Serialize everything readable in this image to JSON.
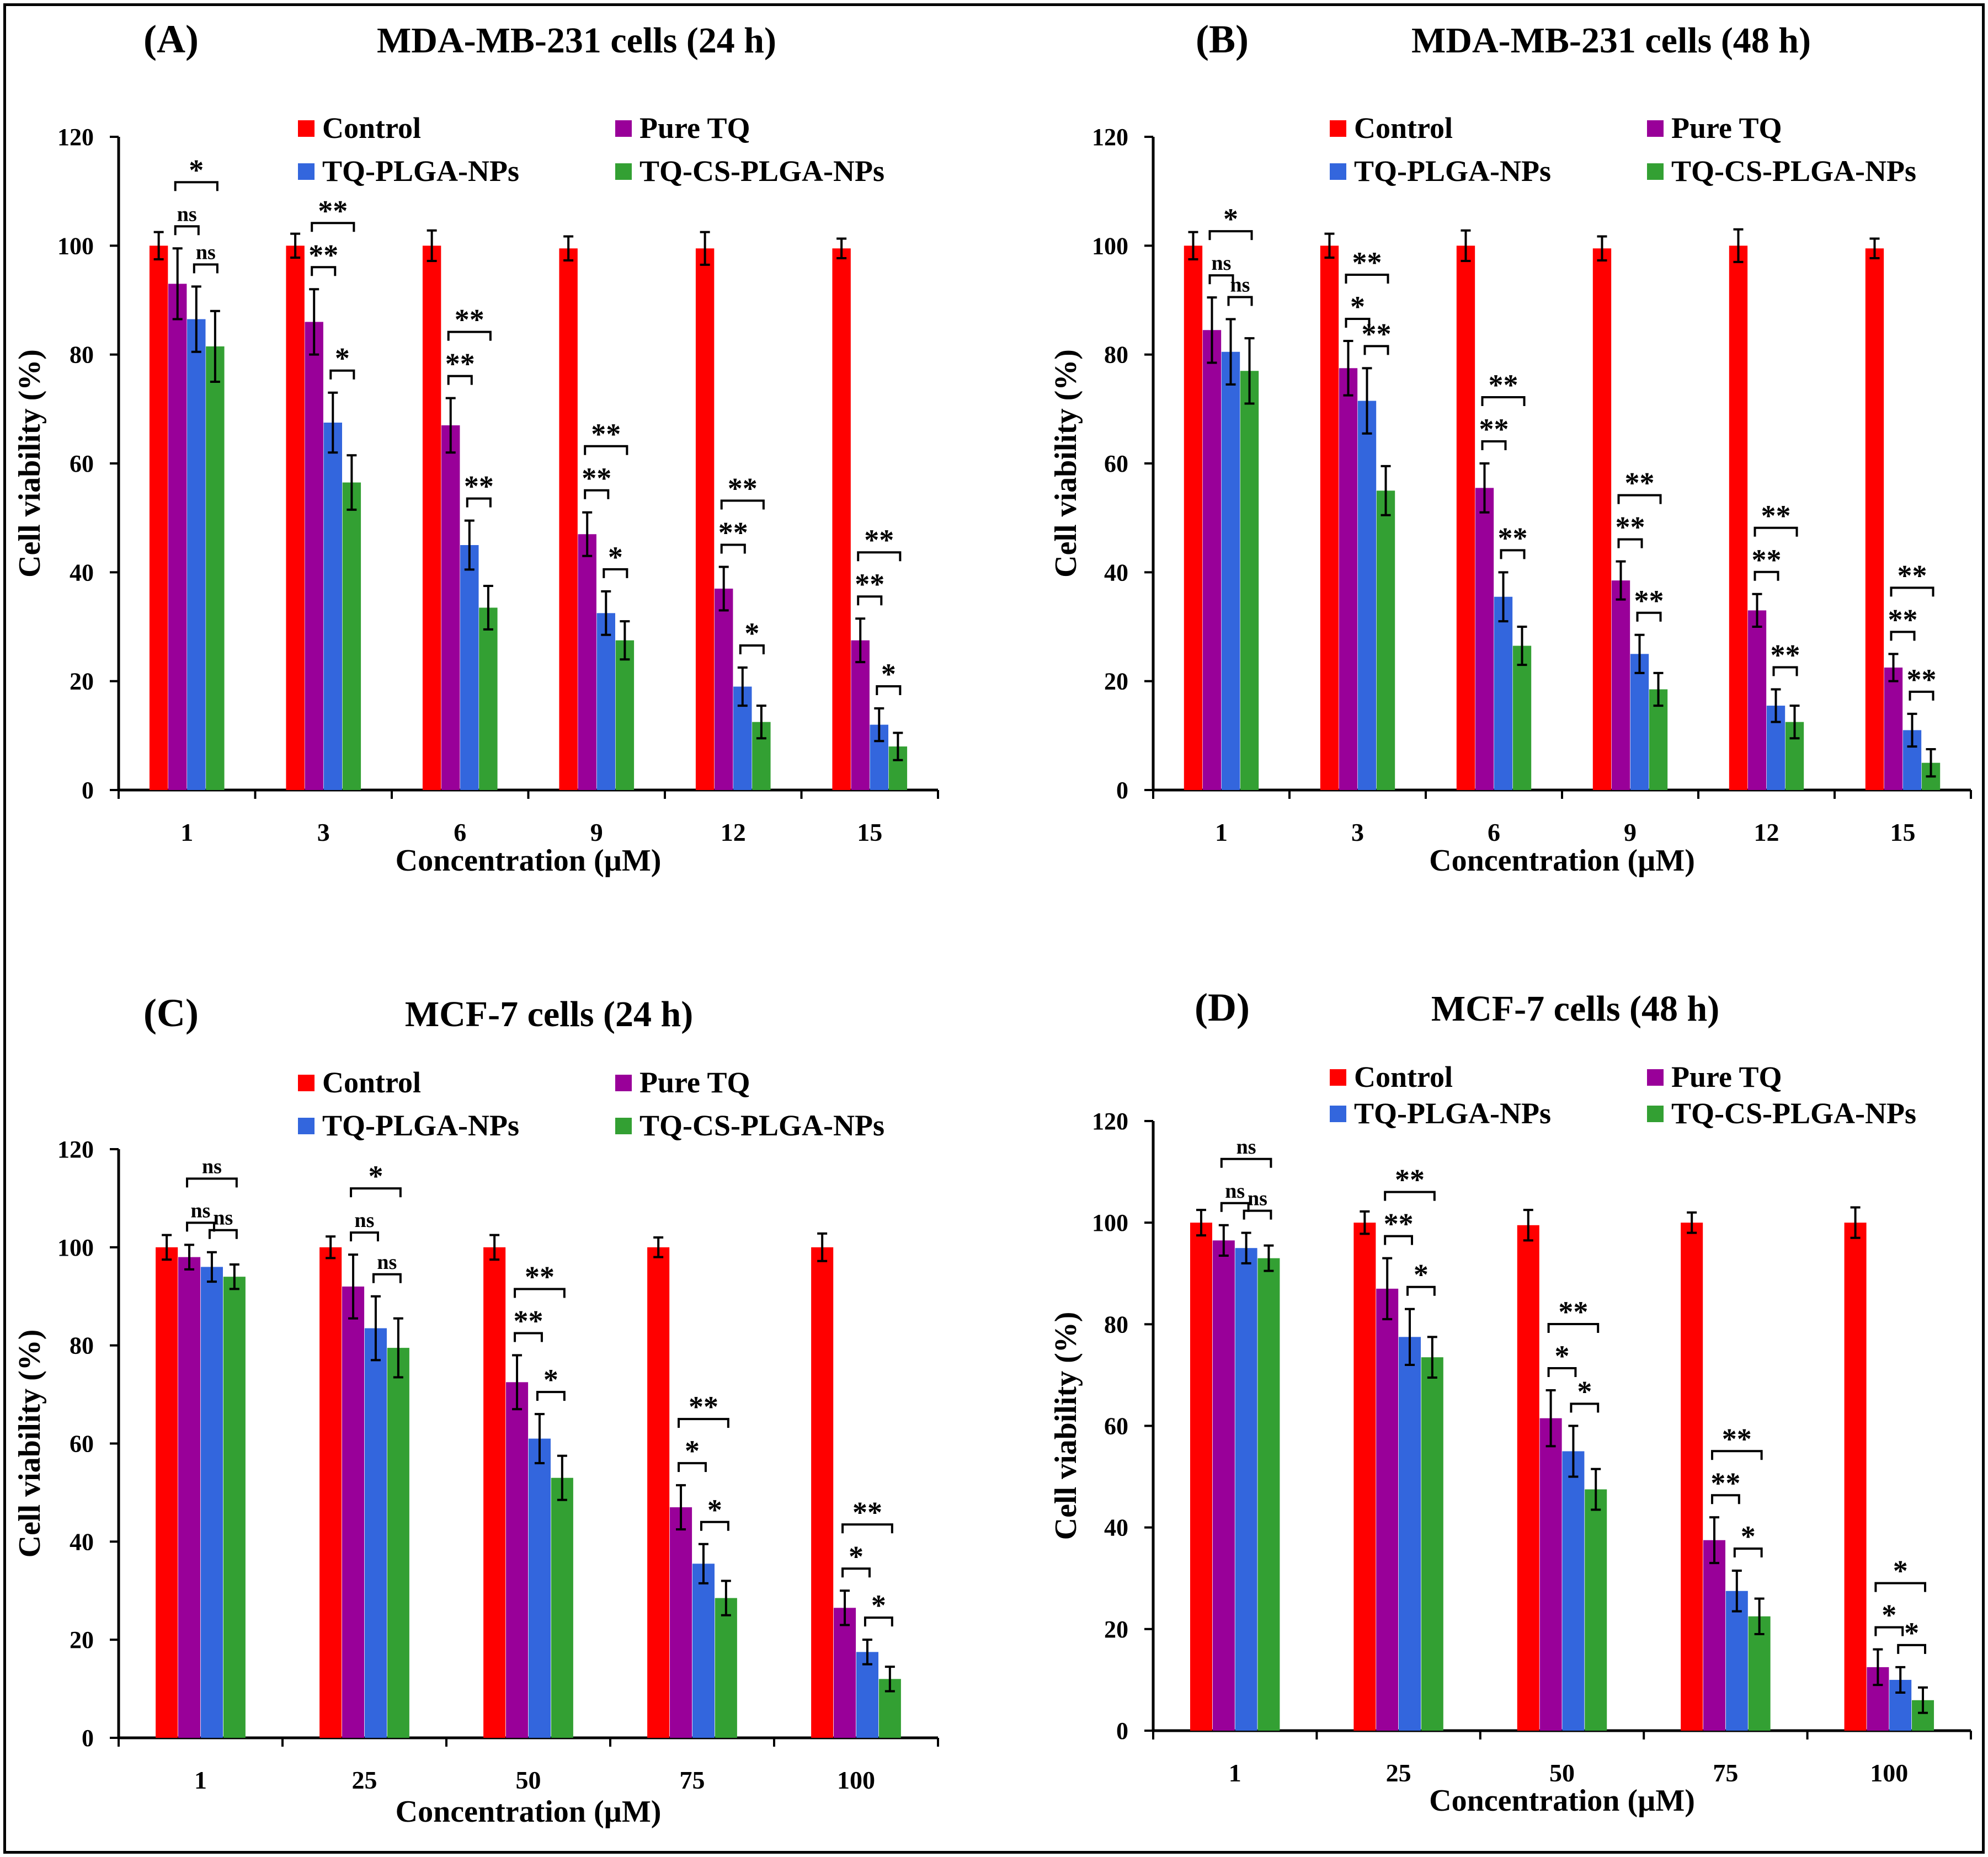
{
  "figure": {
    "series_colors": [
      "#ff0000",
      "#990099",
      "#3366dd",
      "#33a033"
    ]
  },
  "chart_data": [
    {
      "type": "bar",
      "panel_label": "(A)",
      "title": "MDA-MB-231 cells (24 h)",
      "xlabel": "Concentration (µM)",
      "ylabel": "Cell viability (%)",
      "ylim": [
        0,
        120
      ],
      "yticks": [
        0,
        20,
        40,
        60,
        80,
        100,
        120
      ],
      "categories": [
        "1",
        "3",
        "6",
        "9",
        "12",
        "15"
      ],
      "series": [
        {
          "name": "Control",
          "values": [
            100,
            100,
            100,
            99.5,
            99.5,
            99.5
          ],
          "errors": [
            2.5,
            2.2,
            2.8,
            2.2,
            3.0,
            1.8
          ]
        },
        {
          "name": "Pure TQ",
          "values": [
            93,
            86,
            67,
            47,
            37,
            27.5
          ],
          "errors": [
            6.5,
            6,
            5,
            4,
            4,
            4
          ]
        },
        {
          "name": "TQ-PLGA-NPs",
          "values": [
            86.5,
            67.5,
            45,
            32.5,
            19,
            12
          ],
          "errors": [
            6,
            5.5,
            4.5,
            4,
            3.5,
            3
          ]
        },
        {
          "name": "TQ-CS-PLGA-NPs",
          "values": [
            81.5,
            56.5,
            33.5,
            27.5,
            12.5,
            8
          ],
          "errors": [
            6.5,
            5,
            4,
            3.5,
            3,
            2.5
          ]
        }
      ],
      "significance": [
        {
          "label": "*",
          "cat": 0,
          "from": 1,
          "to": 3
        },
        {
          "label": "ns",
          "cat": 0,
          "from": 1,
          "to": 2
        },
        {
          "label": "ns",
          "cat": 0,
          "from": 2,
          "to": 3
        },
        {
          "label": "**",
          "cat": 1,
          "from": 1,
          "to": 3
        },
        {
          "label": "**",
          "cat": 1,
          "from": 1,
          "to": 2
        },
        {
          "label": "*",
          "cat": 1,
          "from": 2,
          "to": 3
        },
        {
          "label": "**",
          "cat": 2,
          "from": 1,
          "to": 3
        },
        {
          "label": "**",
          "cat": 2,
          "from": 1,
          "to": 2
        },
        {
          "label": "**",
          "cat": 2,
          "from": 2,
          "to": 3
        },
        {
          "label": "**",
          "cat": 3,
          "from": 1,
          "to": 3
        },
        {
          "label": "**",
          "cat": 3,
          "from": 1,
          "to": 2
        },
        {
          "label": "*",
          "cat": 3,
          "from": 2,
          "to": 3
        },
        {
          "label": "**",
          "cat": 4,
          "from": 1,
          "to": 3
        },
        {
          "label": "**",
          "cat": 4,
          "from": 1,
          "to": 2
        },
        {
          "label": "*",
          "cat": 4,
          "from": 2,
          "to": 3
        },
        {
          "label": "**",
          "cat": 5,
          "from": 1,
          "to": 3
        },
        {
          "label": "**",
          "cat": 5,
          "from": 1,
          "to": 2
        },
        {
          "label": "*",
          "cat": 5,
          "from": 2,
          "to": 3
        }
      ]
    },
    {
      "type": "bar",
      "panel_label": "(B)",
      "title": "MDA-MB-231 cells (48 h)",
      "xlabel": "Concentration (µM)",
      "ylabel": "Cell viability (%)",
      "ylim": [
        0,
        120
      ],
      "yticks": [
        0,
        20,
        40,
        60,
        80,
        100,
        120
      ],
      "categories": [
        "1",
        "3",
        "6",
        "9",
        "12",
        "15"
      ],
      "series": [
        {
          "name": "Control",
          "values": [
            100,
            100,
            100,
            99.5,
            100,
            99.5
          ],
          "errors": [
            2.5,
            2.2,
            2.8,
            2.2,
            3.0,
            1.8
          ]
        },
        {
          "name": "Pure TQ",
          "values": [
            84.5,
            77.5,
            55.5,
            38.5,
            33,
            22.5
          ],
          "errors": [
            6,
            5,
            4.5,
            3.5,
            3,
            2.5
          ]
        },
        {
          "name": "TQ-PLGA-NPs",
          "values": [
            80.5,
            71.5,
            35.5,
            25,
            15.5,
            11
          ],
          "errors": [
            6,
            6,
            4.5,
            3.5,
            3,
            3
          ]
        },
        {
          "name": "TQ-CS-PLGA-NPs",
          "values": [
            77,
            55,
            26.5,
            18.5,
            12.5,
            5
          ],
          "errors": [
            6,
            4.5,
            3.5,
            3,
            3,
            2.5
          ]
        }
      ],
      "significance": [
        {
          "label": "*",
          "cat": 0,
          "from": 1,
          "to": 3
        },
        {
          "label": "ns",
          "cat": 0,
          "from": 1,
          "to": 2
        },
        {
          "label": "ns",
          "cat": 0,
          "from": 2,
          "to": 3
        },
        {
          "label": "**",
          "cat": 1,
          "from": 1,
          "to": 3
        },
        {
          "label": "*",
          "cat": 1,
          "from": 1,
          "to": 2
        },
        {
          "label": "**",
          "cat": 1,
          "from": 2,
          "to": 3
        },
        {
          "label": "**",
          "cat": 2,
          "from": 1,
          "to": 3
        },
        {
          "label": "**",
          "cat": 2,
          "from": 1,
          "to": 2
        },
        {
          "label": "**",
          "cat": 2,
          "from": 2,
          "to": 3
        },
        {
          "label": "**",
          "cat": 3,
          "from": 1,
          "to": 3
        },
        {
          "label": "**",
          "cat": 3,
          "from": 1,
          "to": 2
        },
        {
          "label": "**",
          "cat": 3,
          "from": 2,
          "to": 3
        },
        {
          "label": "**",
          "cat": 4,
          "from": 1,
          "to": 3
        },
        {
          "label": "**",
          "cat": 4,
          "from": 1,
          "to": 2
        },
        {
          "label": "**",
          "cat": 4,
          "from": 2,
          "to": 3
        },
        {
          "label": "**",
          "cat": 5,
          "from": 1,
          "to": 3
        },
        {
          "label": "**",
          "cat": 5,
          "from": 1,
          "to": 2
        },
        {
          "label": "**",
          "cat": 5,
          "from": 2,
          "to": 3
        }
      ]
    },
    {
      "type": "bar",
      "panel_label": "(C)",
      "title": "MCF-7 cells (24 h)",
      "xlabel": "Concentration (µM)",
      "ylabel": "Cell viability (%)",
      "ylim": [
        0,
        120
      ],
      "yticks": [
        0,
        20,
        40,
        60,
        80,
        100,
        120
      ],
      "categories": [
        "1",
        "25",
        "50",
        "75",
        "100"
      ],
      "series": [
        {
          "name": "Control",
          "values": [
            100,
            100,
            100,
            100,
            100
          ],
          "errors": [
            2.5,
            2.2,
            2.5,
            2,
            2.8
          ]
        },
        {
          "name": "Pure TQ",
          "values": [
            98,
            92,
            72.5,
            47,
            26.5
          ],
          "errors": [
            2.5,
            6.5,
            5.5,
            4.5,
            3.5
          ]
        },
        {
          "name": "TQ-PLGA-NPs",
          "values": [
            96,
            83.5,
            61,
            35.5,
            17.5
          ],
          "errors": [
            3,
            6.5,
            5,
            4,
            2.5
          ]
        },
        {
          "name": "TQ-CS-PLGA-NPs",
          "values": [
            94,
            79.5,
            53,
            28.5,
            12
          ],
          "errors": [
            2.5,
            6,
            4.5,
            3.5,
            2.5
          ]
        }
      ],
      "significance": [
        {
          "label": "ns",
          "cat": 0,
          "from": 1,
          "to": 3
        },
        {
          "label": "ns",
          "cat": 0,
          "from": 1,
          "to": 2
        },
        {
          "label": "ns",
          "cat": 0,
          "from": 2,
          "to": 3
        },
        {
          "label": "*",
          "cat": 1,
          "from": 1,
          "to": 3
        },
        {
          "label": "ns",
          "cat": 1,
          "from": 1,
          "to": 2
        },
        {
          "label": "ns",
          "cat": 1,
          "from": 2,
          "to": 3
        },
        {
          "label": "**",
          "cat": 2,
          "from": 1,
          "to": 3
        },
        {
          "label": "**",
          "cat": 2,
          "from": 1,
          "to": 2
        },
        {
          "label": "*",
          "cat": 2,
          "from": 2,
          "to": 3
        },
        {
          "label": "**",
          "cat": 3,
          "from": 1,
          "to": 3
        },
        {
          "label": "*",
          "cat": 3,
          "from": 1,
          "to": 2
        },
        {
          "label": "*",
          "cat": 3,
          "from": 2,
          "to": 3
        },
        {
          "label": "**",
          "cat": 4,
          "from": 1,
          "to": 3
        },
        {
          "label": "*",
          "cat": 4,
          "from": 1,
          "to": 2
        },
        {
          "label": "*",
          "cat": 4,
          "from": 2,
          "to": 3
        }
      ]
    },
    {
      "type": "bar",
      "panel_label": "(D)",
      "title": "MCF-7 cells (48 h)",
      "xlabel": "Concentration (µM)",
      "ylabel": "Cell viability (%)",
      "ylim": [
        0,
        120
      ],
      "yticks": [
        0,
        20,
        40,
        60,
        80,
        100,
        120
      ],
      "categories": [
        "1",
        "25",
        "50",
        "75",
        "100"
      ],
      "series": [
        {
          "name": "Control",
          "values": [
            100,
            100,
            99.5,
            100,
            100
          ],
          "errors": [
            2.5,
            2.2,
            3,
            2,
            3
          ]
        },
        {
          "name": "Pure TQ",
          "values": [
            96.5,
            87,
            61.5,
            37.5,
            12.5
          ],
          "errors": [
            3,
            6,
            5.5,
            4.5,
            3.5
          ]
        },
        {
          "name": "TQ-PLGA-NPs",
          "values": [
            95,
            77.5,
            55,
            27.5,
            10
          ],
          "errors": [
            3,
            5.5,
            5,
            4,
            2.5
          ]
        },
        {
          "name": "TQ-CS-PLGA-NPs",
          "values": [
            93,
            73.5,
            47.5,
            22.5,
            6
          ],
          "errors": [
            2.5,
            4,
            4,
            3.5,
            2.5
          ]
        }
      ],
      "significance": [
        {
          "label": "ns",
          "cat": 0,
          "from": 1,
          "to": 3
        },
        {
          "label": "ns",
          "cat": 0,
          "from": 1,
          "to": 2
        },
        {
          "label": "ns",
          "cat": 0,
          "from": 2,
          "to": 3
        },
        {
          "label": "**",
          "cat": 1,
          "from": 1,
          "to": 3
        },
        {
          "label": "**",
          "cat": 1,
          "from": 1,
          "to": 2
        },
        {
          "label": "*",
          "cat": 1,
          "from": 2,
          "to": 3
        },
        {
          "label": "**",
          "cat": 2,
          "from": 1,
          "to": 3
        },
        {
          "label": "*",
          "cat": 2,
          "from": 1,
          "to": 2
        },
        {
          "label": "*",
          "cat": 2,
          "from": 2,
          "to": 3
        },
        {
          "label": "**",
          "cat": 3,
          "from": 1,
          "to": 3
        },
        {
          "label": "**",
          "cat": 3,
          "from": 1,
          "to": 2
        },
        {
          "label": "*",
          "cat": 3,
          "from": 2,
          "to": 3
        },
        {
          "label": "*",
          "cat": 4,
          "from": 1,
          "to": 3
        },
        {
          "label": "*",
          "cat": 4,
          "from": 1,
          "to": 2
        },
        {
          "label": "*",
          "cat": 4,
          "from": 2,
          "to": 3
        }
      ]
    }
  ]
}
